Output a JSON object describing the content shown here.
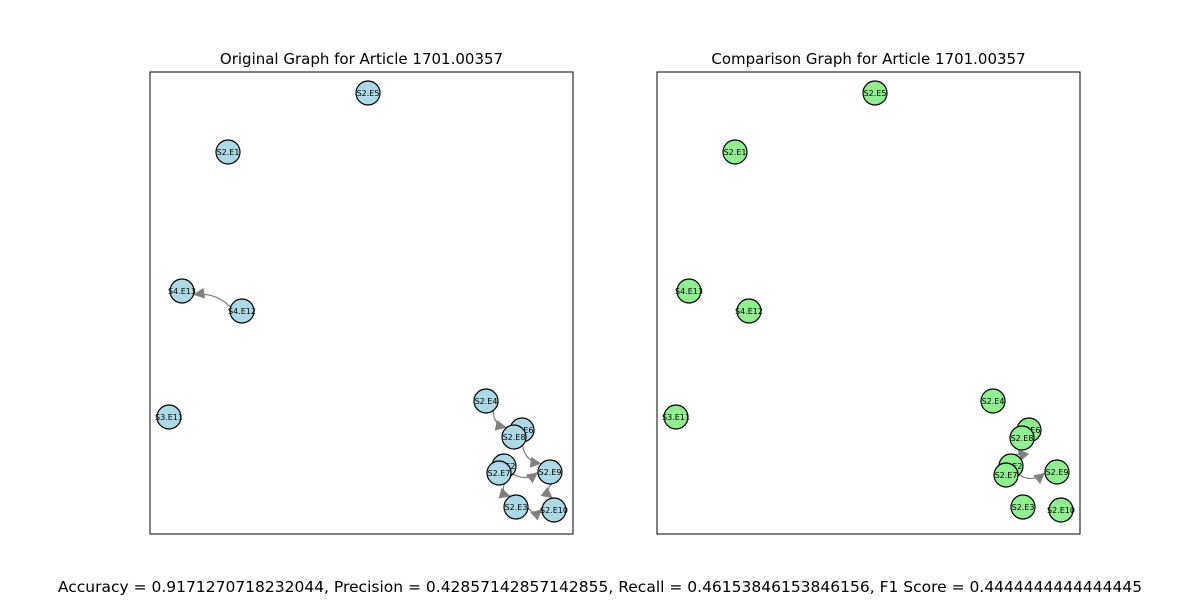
{
  "panels": [
    {
      "id": "original",
      "title": "Original Graph for Article 1701.00357",
      "node_color": "#add8e6",
      "nodes": [
        "S2.E5",
        "S2.E1",
        "S4.E13",
        "S4.E12",
        "S3.E11",
        "S2.E4",
        "S2.E6",
        "S2.E8",
        "S2.E2",
        "S2.E7",
        "S2.E9",
        "S2.E3",
        "S2.E10"
      ],
      "edges": [
        [
          "S4.E12",
          "S4.E13"
        ],
        [
          "S2.E4",
          "S2.E8"
        ],
        [
          "S2.E8",
          "S2.E9"
        ],
        [
          "S2.E9",
          "S2.E10"
        ],
        [
          "S2.E7",
          "S2.E9"
        ],
        [
          "S2.E7",
          "S2.E3"
        ],
        [
          "S2.E3",
          "S2.E10"
        ],
        [
          "S2.E7",
          "S2.E2"
        ]
      ]
    },
    {
      "id": "comparison",
      "title": "Comparison Graph for Article 1701.00357",
      "node_color": "#90ee90",
      "nodes": [
        "S2.E5",
        "S2.E1",
        "S4.E13",
        "S4.E12",
        "S3.E11",
        "S2.E4",
        "S2.E6",
        "S2.E8",
        "S2.E2",
        "S2.E7",
        "S2.E9",
        "S2.E3",
        "S2.E10"
      ],
      "edges": [
        [
          "S2.E7",
          "S2.E9"
        ],
        [
          "S2.E2",
          "S2.E8"
        ]
      ]
    }
  ],
  "metrics_text": "Accuracy = 0.9171270718232044, Precision = 0.42857142857142855, Recall = 0.46153846153846156, F1 Score = 0.4444444444444445",
  "colors": {
    "edge": "#808080",
    "node_border": "#000000"
  }
}
